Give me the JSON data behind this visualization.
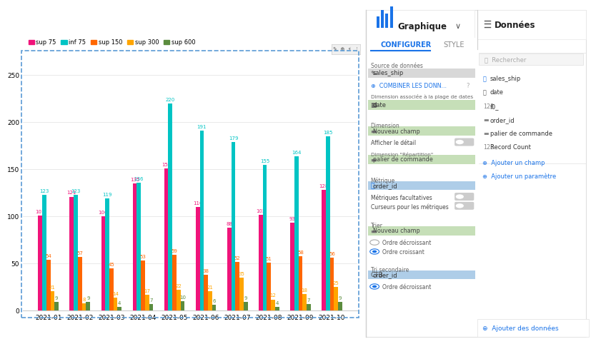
{
  "categories": [
    "2021-01",
    "2021-02",
    "2021-03",
    "2021-04",
    "2021-05",
    "2021-06",
    "2021-07",
    "2021-08",
    "2021-09",
    "2021-10"
  ],
  "series": {
    "sup 75": [
      101,
      121,
      100,
      135,
      151,
      110,
      88,
      102,
      93,
      128
    ],
    "inf 75": [
      123,
      123,
      119,
      136,
      220,
      191,
      179,
      155,
      164,
      185
    ],
    "sup 150": [
      54,
      57,
      45,
      53,
      59,
      38,
      52,
      51,
      58,
      56
    ],
    "sup 300": [
      21,
      8,
      14,
      17,
      22,
      21,
      35,
      12,
      18,
      25
    ],
    "sup 600": [
      9,
      9,
      4,
      7,
      10,
      6,
      9,
      4,
      7,
      9
    ]
  },
  "colors": {
    "sup 75": "#F0137A",
    "inf 75": "#00C4C4",
    "sup 150": "#FF6600",
    "sup 300": "#FFA500",
    "sup 600": "#5B8C3E"
  },
  "ylim": [
    0,
    260
  ],
  "yticks": [
    0,
    50,
    100,
    150,
    200,
    250
  ],
  "bg_color": "#FFFFFF",
  "grid_color": "#E0E0E0",
  "chart_border_color": "#5B9BD5",
  "panel_bg": "#F8F8F8",
  "panel_divider": "#E0E0E0",
  "green_pill_bg": "#C6DFB8",
  "green_pill_fg": "#444444",
  "blue_pill_bg": "#AECDE8",
  "blue_pill_fg": "#333333",
  "gray_pill_bg": "#D0D0D0",
  "blue_text": "#1A73E8",
  "section_label": "#666666",
  "toggle_off_bg": "#CCCCCC",
  "toggle_on_bg": "#1A73E8"
}
